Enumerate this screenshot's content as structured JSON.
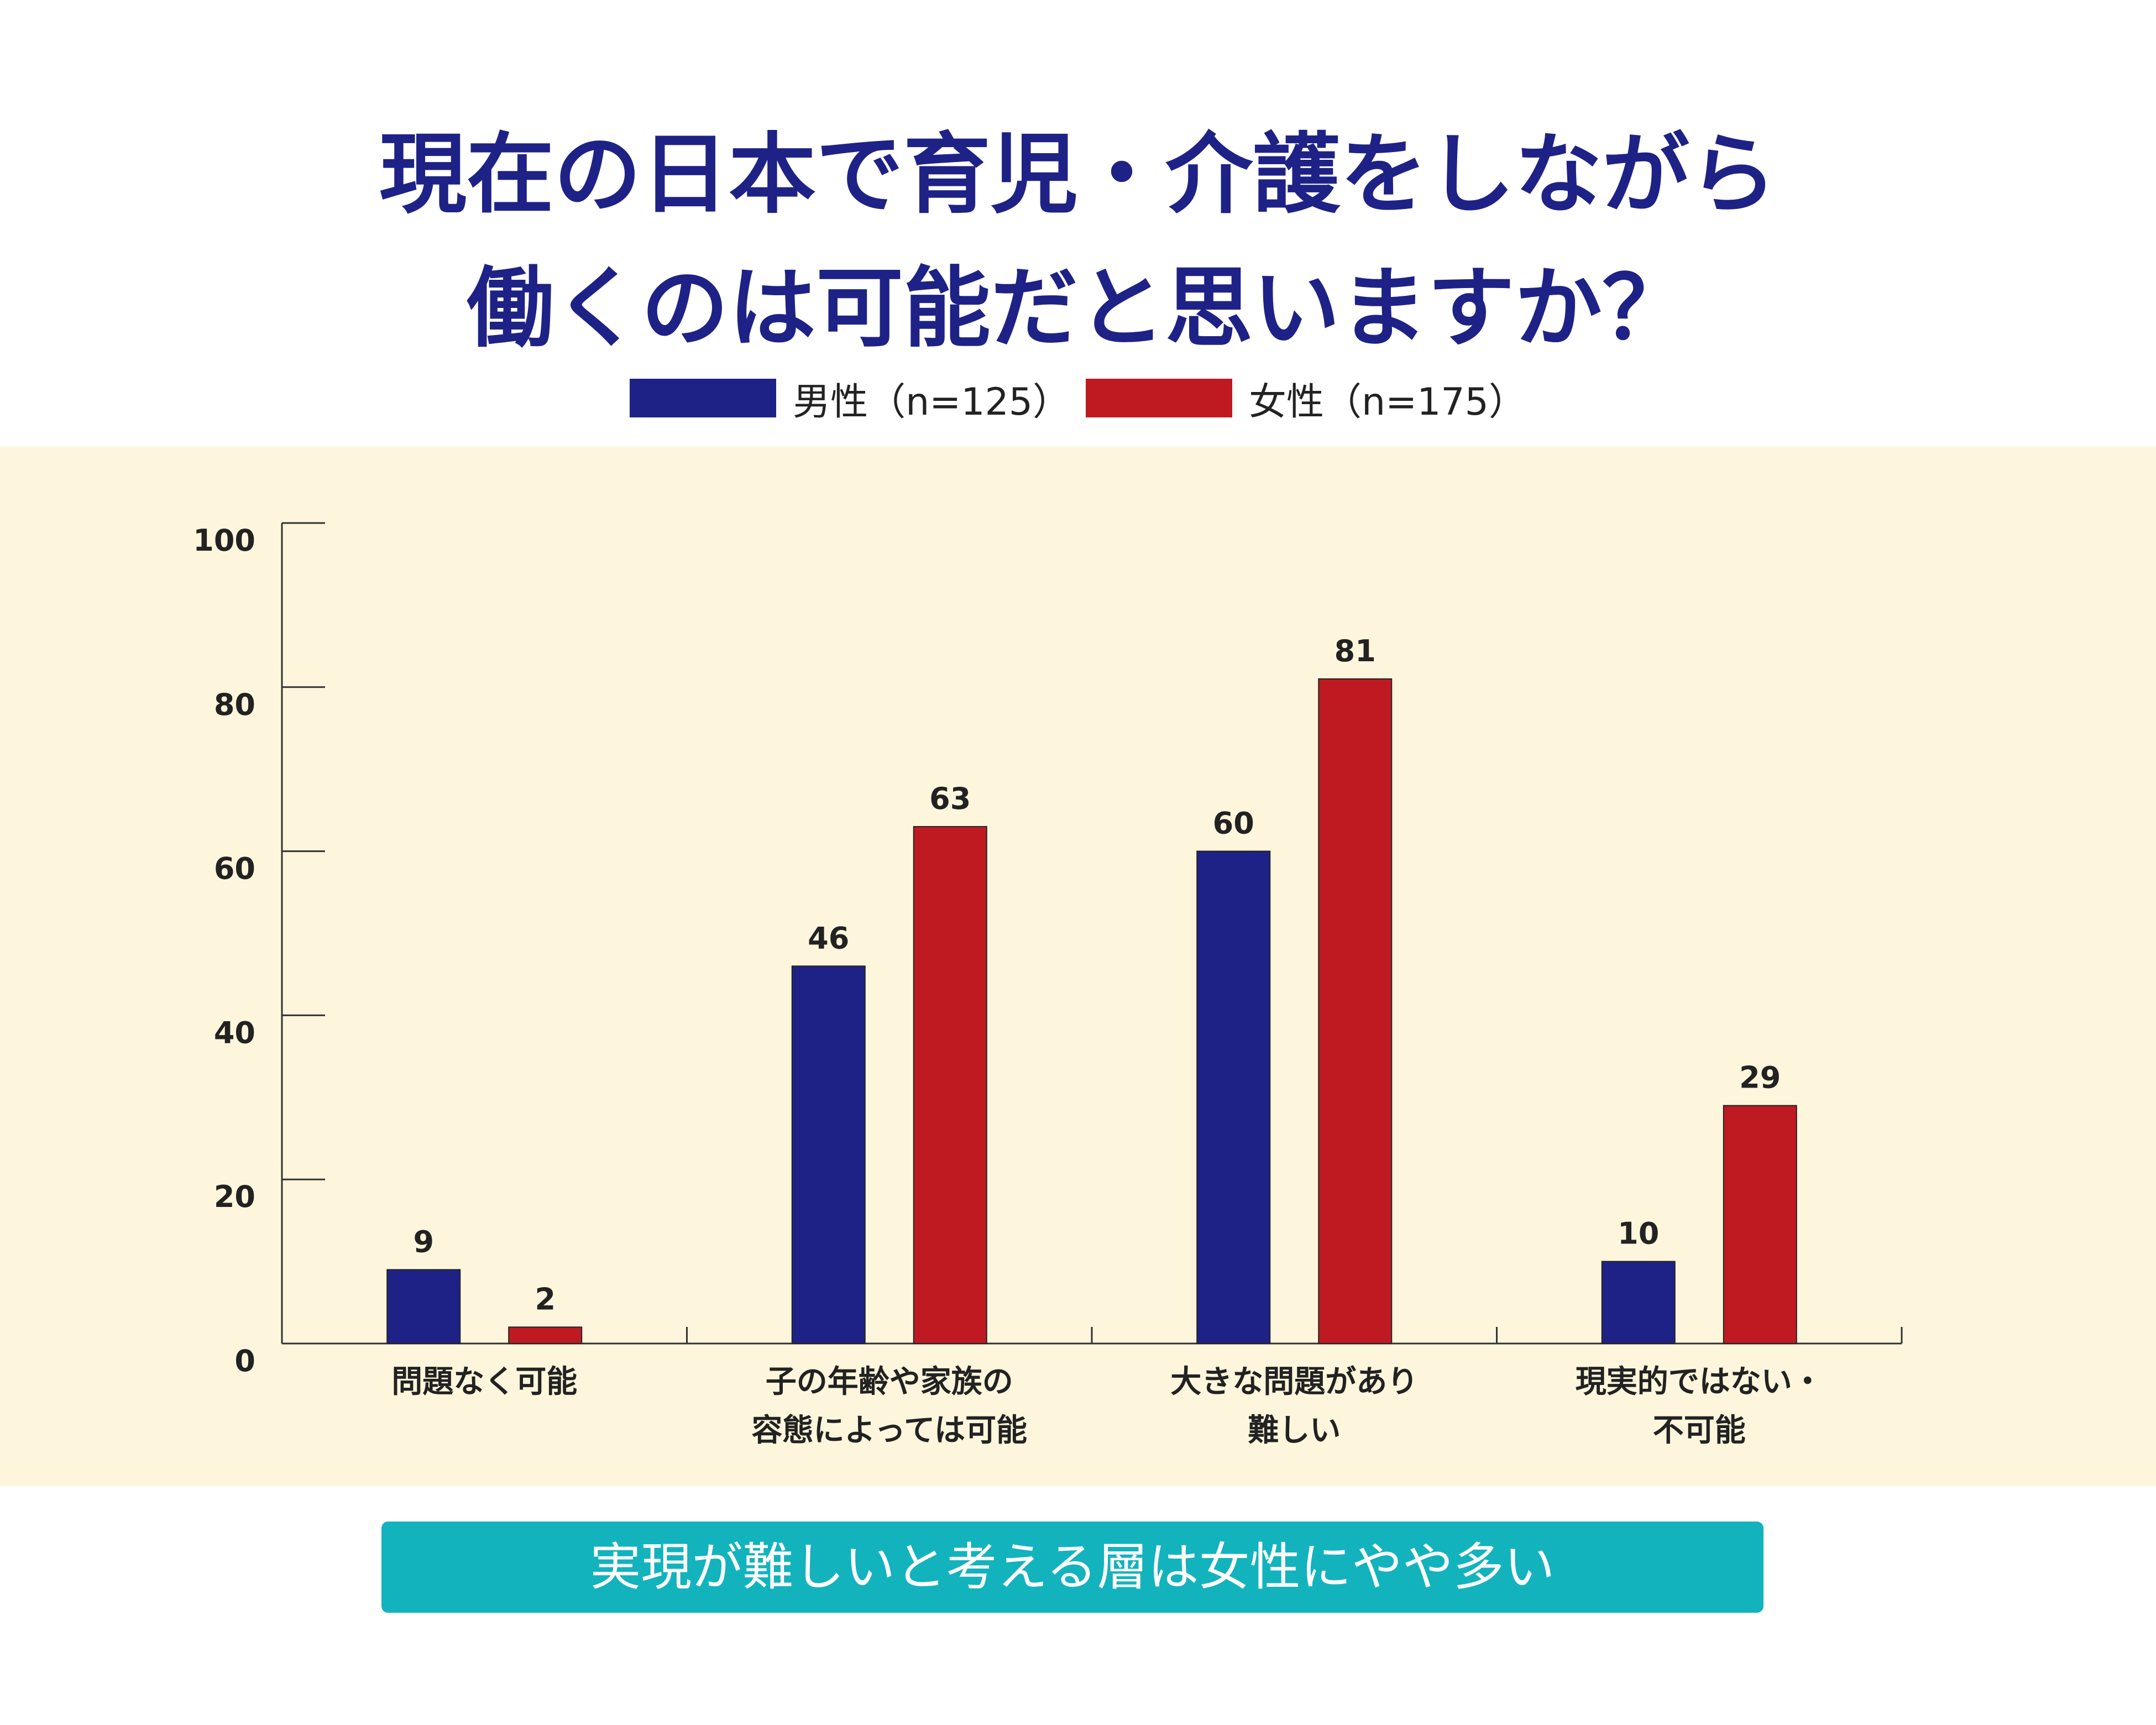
{
  "title_lines": [
    "現在の日本で育児・介護をしながら",
    "働くのは可能だと思いますか？"
  ],
  "colors": {
    "male": "#1e2286",
    "female": "#bf1a22",
    "panel_bg": "#fdf6dc",
    "callout_bg": "#12b3bd",
    "title": "#1e2286"
  },
  "callout": "実現が難しいと考える層は女性にやや多い",
  "chart_data": {
    "type": "bar",
    "title": "",
    "xlabel": "",
    "ylabel": "",
    "ylim": [
      0,
      100
    ],
    "yticks": [
      "0",
      "20",
      "40",
      "60",
      "80",
      "100"
    ],
    "grid": false,
    "legend_position": "top-center",
    "categories": [
      [
        "問題なく可能"
      ],
      [
        "子の年齢や家族の",
        "容態によっては可能"
      ],
      [
        "大きな問題があり",
        "難しい"
      ],
      [
        "現実的ではない・",
        "不可能"
      ]
    ],
    "series": [
      {
        "name": "男性（n=125）",
        "color": "#1e2286",
        "values": [
          9,
          46,
          60,
          10
        ]
      },
      {
        "name": "女性（n=175）",
        "color": "#bf1a22",
        "values": [
          2,
          63,
          81,
          29
        ]
      }
    ]
  }
}
